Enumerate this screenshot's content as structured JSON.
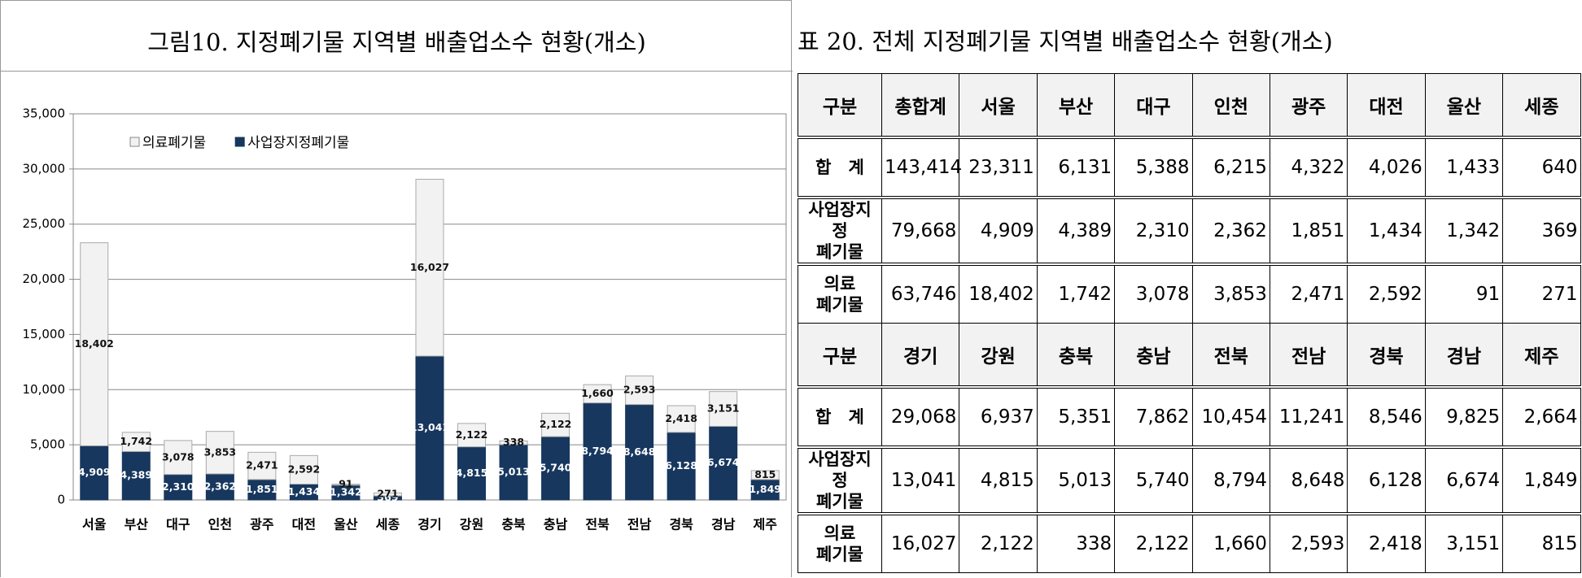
{
  "chart_data": {
    "type": "stacked-bar",
    "title": "그림10. 지정폐기물 지역별 배출업소수 현황(개소)",
    "categories": [
      "서울",
      "부산",
      "대구",
      "인천",
      "광주",
      "대전",
      "울산",
      "세종",
      "경기",
      "강원",
      "충북",
      "충남",
      "전북",
      "전남",
      "경북",
      "경남",
      "제주"
    ],
    "series": [
      {
        "name": "사업장지정폐기물",
        "color": "#17375e",
        "values": [
          4909,
          4389,
          2310,
          2362,
          1851,
          1434,
          1342,
          369,
          13041,
          4815,
          5013,
          5740,
          8794,
          8648,
          6128,
          6674,
          1849
        ],
        "value_labels": [
          "4,909",
          "4,389",
          "2,310",
          "2,362",
          "1,851",
          "1,434",
          "1,342",
          "369",
          "13,041",
          "4,815",
          "5,013",
          "5,740",
          "8,794",
          "8,648",
          "6,128",
          "6,674",
          "1,849"
        ]
      },
      {
        "name": "의료폐기물",
        "color": "#f2f2f2",
        "values": [
          18402,
          1742,
          3078,
          3853,
          2471,
          2592,
          91,
          271,
          16027,
          2122,
          338,
          2122,
          1660,
          2593,
          2418,
          3151,
          815
        ],
        "value_labels": [
          "18,402",
          "1,742",
          "3,078",
          "3,853",
          "2,471",
          "2,592",
          "91",
          "271",
          "16,027",
          "2,122",
          "338",
          "2,122",
          "1,660",
          "2,593",
          "2,418",
          "3,151",
          "815"
        ]
      }
    ],
    "ylim": [
      0,
      35000
    ],
    "yticks": [
      0,
      {
        "value": 5000,
        "label": "5,000"
      },
      {
        "value": 10000,
        "label": "10,000"
      },
      {
        "value": 15000,
        "label": "15,000"
      },
      {
        "value": 20000,
        "label": "20,000"
      },
      {
        "value": 25000,
        "label": "25,000"
      },
      {
        "value": 30000,
        "label": "30,000"
      },
      {
        "value": 35000,
        "label": "35,000"
      }
    ],
    "grid": true
  },
  "table": {
    "title": "표 20. 전체 지정폐기물 지역별 배출업소수 현황(개소)",
    "blocks": [
      {
        "header": [
          "구분",
          "총합계",
          "서울",
          "부산",
          "대구",
          "인천",
          "광주",
          "대전",
          "울산",
          "세종"
        ],
        "rows": [
          [
            "합　계",
            "143,414",
            "23,311",
            "6,131",
            "5,388",
            "6,215",
            "4,322",
            "4,026",
            "1,433",
            "640"
          ],
          [
            "사업장지정\n폐기물",
            "79,668",
            "4,909",
            "4,389",
            "2,310",
            "2,362",
            "1,851",
            "1,434",
            "1,342",
            "369"
          ],
          [
            "의료\n폐기물",
            "63,746",
            "18,402",
            "1,742",
            "3,078",
            "3,853",
            "2,471",
            "2,592",
            "91",
            "271"
          ]
        ]
      },
      {
        "header": [
          "구분",
          "경기",
          "강원",
          "충북",
          "충남",
          "전북",
          "전남",
          "경북",
          "경남",
          "제주"
        ],
        "rows": [
          [
            "합　계",
            "29,068",
            "6,937",
            "5,351",
            "7,862",
            "10,454",
            "11,241",
            "8,546",
            "9,825",
            "2,664"
          ],
          [
            "사업장지정\n폐기물",
            "13,041",
            "4,815",
            "5,013",
            "5,740",
            "8,794",
            "8,648",
            "6,128",
            "6,674",
            "1,849"
          ],
          [
            "의료\n폐기물",
            "16,027",
            "2,122",
            "338",
            "2,122",
            "1,660",
            "2,593",
            "2,418",
            "3,151",
            "815"
          ]
        ]
      }
    ]
  }
}
